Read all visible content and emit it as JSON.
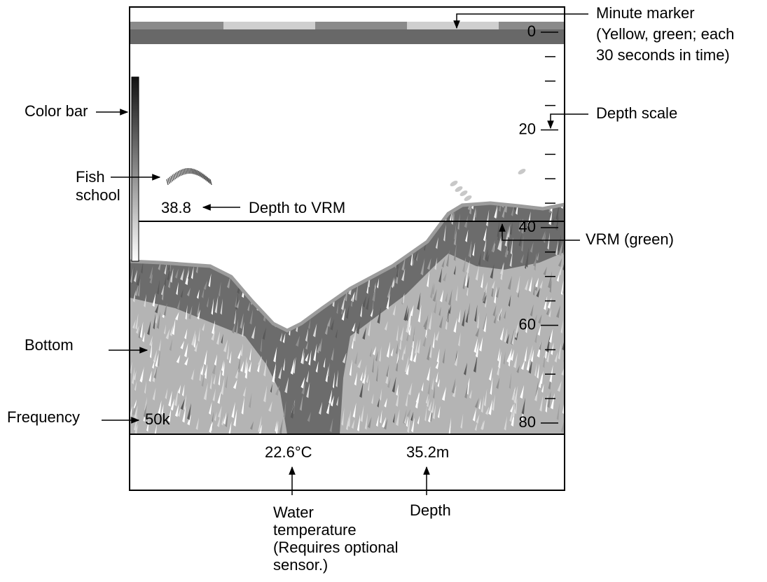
{
  "screen": {
    "depth_scale": [
      0,
      20,
      40,
      60,
      80
    ],
    "vrm_depth": 38.8,
    "frequency": "50k",
    "water_temperature": "22.6°C",
    "depth": "35.2m"
  },
  "callouts": {
    "minute_marker": [
      "Minute marker",
      "(Yellow, green; each",
      "30 seconds in time)"
    ],
    "depth_scale": "Depth scale",
    "vrm": "VRM (green)",
    "color_bar": "Color bar",
    "fish_school": [
      "Fish",
      "school"
    ],
    "depth_to_vrm": "Depth to VRM",
    "bottom": "Bottom",
    "frequency": "Frequency",
    "water_temperature": [
      "Water",
      "temperature",
      "(Requires optional",
      "sensor.)"
    ],
    "depth": "Depth"
  }
}
